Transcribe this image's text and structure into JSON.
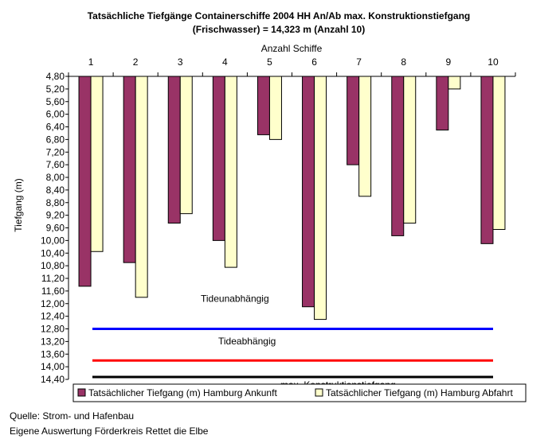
{
  "chart_data": {
    "type": "bar",
    "title": "Tatsächliche Tiefgänge Containerschiffe 2004 HH An/Ab max. Konstruktionstiefgang",
    "subtitle": "(Frischwasser) = 14,323 m (Anzahl 10)",
    "xlabel": "Anzahl Schiffe",
    "ylabel": "Tiefgang (m)",
    "categories": [
      "1",
      "2",
      "3",
      "4",
      "5",
      "6",
      "7",
      "8",
      "9",
      "10"
    ],
    "y_axis": {
      "inverted": true,
      "range": [
        4.8,
        14.4
      ],
      "ticks": [
        "4,80",
        "5,20",
        "5,60",
        "6,00",
        "6,40",
        "6,80",
        "7,20",
        "7,60",
        "8,00",
        "8,40",
        "8,80",
        "9,20",
        "9,60",
        "10,00",
        "10,40",
        "10,80",
        "11,20",
        "11,60",
        "12,00",
        "12,40",
        "12,80",
        "13,20",
        "13,60",
        "14,00",
        "14,40"
      ]
    },
    "series": [
      {
        "name": "Tatsächlicher Tiefgang (m) Hamburg Ankunft",
        "color": "#993366",
        "values": [
          11.45,
          10.7,
          9.45,
          10.0,
          6.65,
          12.1,
          7.6,
          9.85,
          6.5,
          10.1
        ]
      },
      {
        "name": "Tatsächlicher Tiefgang (m) Hamburg Abfahrt",
        "color": "#FFFFCC",
        "values": [
          10.35,
          11.8,
          9.15,
          10.85,
          6.8,
          12.5,
          8.6,
          9.45,
          5.2,
          9.65
        ]
      }
    ],
    "reference_lines": [
      {
        "label": "Tideunabhängig",
        "value": 12.8,
        "color": "#0000FF"
      },
      {
        "label": "Tideabhängig",
        "value": 13.8,
        "color": "#FF0000"
      },
      {
        "label": "max. Konstruktionstiefgang",
        "value": 14.323,
        "color": "#000000"
      }
    ],
    "legend_position": "bottom",
    "grid": false
  },
  "source": {
    "line1": "Quelle: Strom- und Hafenbau",
    "line2": "Eigene Auswertung Förderkreis Rettet die Elbe"
  }
}
